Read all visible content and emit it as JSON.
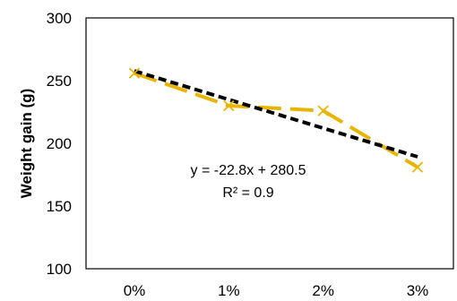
{
  "chart_data": {
    "type": "line",
    "title": "",
    "xlabel": "",
    "ylabel": "Weight gain (g)",
    "categories": [
      "0%",
      "1%",
      "2%",
      "3%"
    ],
    "series": [
      {
        "values": [
          256,
          230,
          226,
          181
        ],
        "color": "#e8b400",
        "line_style": "dashed",
        "marker": "x"
      }
    ],
    "trendline": {
      "type": "linear",
      "slope": -22.8,
      "intercept": 280.5,
      "color": "#000000",
      "line_style": "dashed"
    },
    "annotations": [
      "y = -22.8x + 280.5",
      "R² = 0.9"
    ],
    "ylim": [
      100,
      300
    ],
    "yticks": [
      "100",
      "150",
      "200",
      "250",
      "300"
    ],
    "grid": false,
    "legend": "none"
  }
}
